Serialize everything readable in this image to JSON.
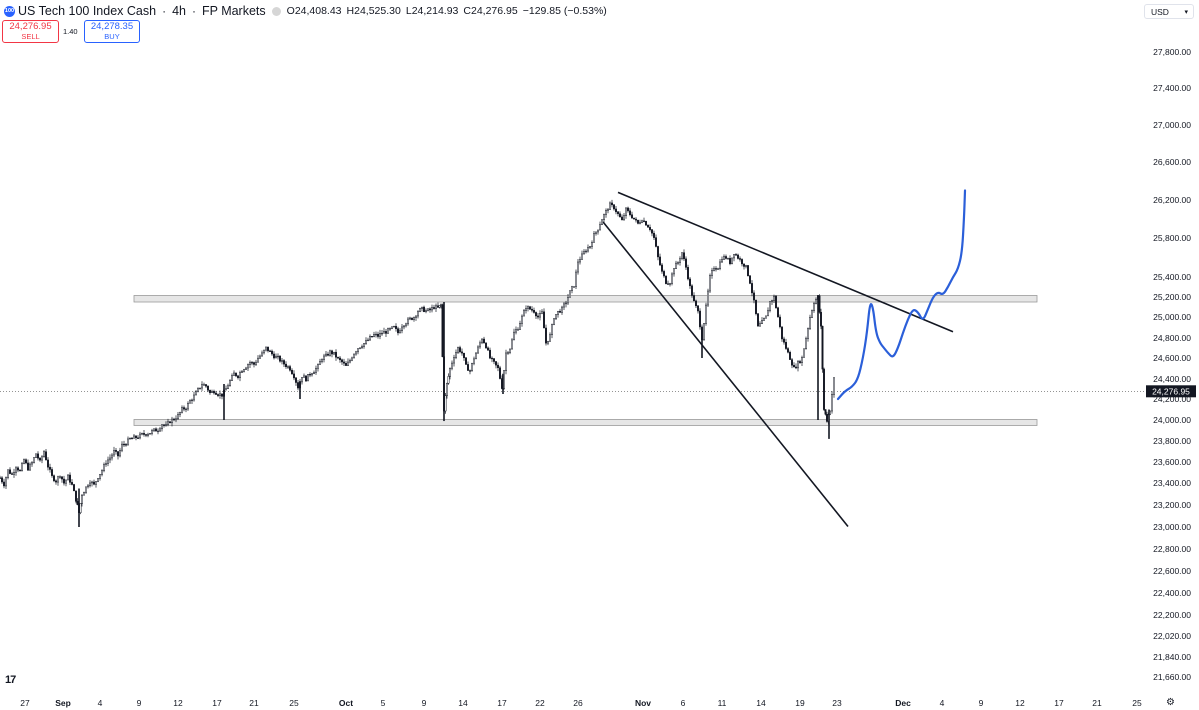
{
  "header": {
    "logo_text": "100",
    "title": "US Tech 100 Index Cash",
    "interval": "4h",
    "broker": "FP Markets",
    "open_label": "O",
    "open": "24,408.43",
    "high_label": "H",
    "high": "24,525.30",
    "low_label": "L",
    "low": "24,214.93",
    "close_label": "C",
    "close": "24,276.95",
    "change": "−129.85 (−0.53%)"
  },
  "trade": {
    "sell_price": "24,276.95",
    "sell_label": "SELL",
    "spread": "1.40",
    "buy_price": "24,278.35",
    "buy_label": "BUY"
  },
  "currency": "USD",
  "logo": "17",
  "colors": {
    "accent": "#2962ff",
    "sell": "#f23645",
    "candles": "#131722",
    "projection": "#2b5fd9",
    "price_tag": "#131722"
  },
  "icons": {
    "settings": "gear-icon",
    "brand": "tradingview-logo-icon"
  },
  "chart_data": {
    "type": "candlestick",
    "title": "US Tech 100 Index Cash · 4h · FP Markets",
    "y_unit": "USD",
    "y_ticks": [
      27800,
      27400,
      27000,
      26600,
      26200,
      25800,
      25400,
      25200,
      25000,
      24800,
      24600,
      24400,
      24200,
      24000,
      23800,
      23600,
      23400,
      23200,
      23000,
      22800,
      22600,
      22400,
      22200,
      22020,
      21840,
      21660
    ],
    "y_tick_labels": [
      "27,800.00",
      "27,400.00",
      "27,000.00",
      "26,600.00",
      "26,200.00",
      "25,800.00",
      "25,400.00",
      "25,200.00",
      "25,000.00",
      "24,800.00",
      "24,600.00",
      "24,400.00",
      "24,200.00",
      "24,000.00",
      "23,800.00",
      "23,600.00",
      "23,400.00",
      "23,200.00",
      "23,000.00",
      "22,800.00",
      "22,600.00",
      "22,400.00",
      "22,200.00",
      "22,020.00",
      "21,840.00",
      "21,660.00"
    ],
    "x_labels": [
      "27",
      "Sep",
      "4",
      "9",
      "12",
      "17",
      "21",
      "25",
      "Oct",
      "5",
      "9",
      "14",
      "17",
      "22",
      "26",
      "Nov",
      "6",
      "11",
      "14",
      "19",
      "23",
      "Dec",
      "4",
      "9",
      "12",
      "17",
      "21",
      "25"
    ],
    "x_label_bold": [
      "Sep",
      "Oct",
      "Nov",
      "Dec"
    ],
    "last_price": 24276.95,
    "last_price_label": "24,276.95",
    "price_path": [
      [
        0,
        23450
      ],
      [
        4,
        23390
      ],
      [
        8,
        23520
      ],
      [
        12,
        23480
      ],
      [
        16,
        23560
      ],
      [
        20,
        23510
      ],
      [
        24,
        23620
      ],
      [
        28,
        23540
      ],
      [
        32,
        23590
      ],
      [
        36,
        23680
      ],
      [
        40,
        23600
      ],
      [
        44,
        23700
      ],
      [
        48,
        23560
      ],
      [
        52,
        23460
      ],
      [
        56,
        23420
      ],
      [
        60,
        23480
      ],
      [
        64,
        23400
      ],
      [
        68,
        23460
      ],
      [
        72,
        23380
      ],
      [
        76,
        23250
      ],
      [
        79,
        23130
      ],
      [
        82,
        23300
      ],
      [
        86,
        23360
      ],
      [
        90,
        23420
      ],
      [
        94,
        23380
      ],
      [
        98,
        23460
      ],
      [
        102,
        23520
      ],
      [
        106,
        23600
      ],
      [
        110,
        23640
      ],
      [
        114,
        23700
      ],
      [
        118,
        23660
      ],
      [
        122,
        23760
      ],
      [
        126,
        23780
      ],
      [
        130,
        23820
      ],
      [
        134,
        23830
      ],
      [
        138,
        23840
      ],
      [
        142,
        23860
      ],
      [
        146,
        23870
      ],
      [
        150,
        23880
      ],
      [
        154,
        23900
      ],
      [
        158,
        23910
      ],
      [
        162,
        23960
      ],
      [
        166,
        23940
      ],
      [
        170,
        23990
      ],
      [
        174,
        24010
      ],
      [
        178,
        24040
      ],
      [
        182,
        24100
      ],
      [
        186,
        24120
      ],
      [
        190,
        24180
      ],
      [
        194,
        24230
      ],
      [
        198,
        24290
      ],
      [
        202,
        24350
      ],
      [
        206,
        24330
      ],
      [
        210,
        24260
      ],
      [
        214,
        24280
      ],
      [
        218,
        24250
      ],
      [
        222,
        24240
      ],
      [
        226,
        24300
      ],
      [
        230,
        24380
      ],
      [
        234,
        24450
      ],
      [
        238,
        24430
      ],
      [
        242,
        24490
      ],
      [
        246,
        24520
      ],
      [
        250,
        24560
      ],
      [
        254,
        24540
      ],
      [
        258,
        24600
      ],
      [
        262,
        24640
      ],
      [
        266,
        24700
      ],
      [
        270,
        24660
      ],
      [
        274,
        24620
      ],
      [
        278,
        24600
      ],
      [
        282,
        24560
      ],
      [
        286,
        24530
      ],
      [
        290,
        24500
      ],
      [
        294,
        24430
      ],
      [
        298,
        24320
      ],
      [
        302,
        24430
      ],
      [
        306,
        24400
      ],
      [
        310,
        24450
      ],
      [
        314,
        24480
      ],
      [
        318,
        24520
      ],
      [
        322,
        24600
      ],
      [
        326,
        24620
      ],
      [
        330,
        24660
      ],
      [
        334,
        24640
      ],
      [
        338,
        24590
      ],
      [
        342,
        24560
      ],
      [
        346,
        24520
      ],
      [
        350,
        24580
      ],
      [
        354,
        24650
      ],
      [
        358,
        24700
      ],
      [
        362,
        24730
      ],
      [
        366,
        24760
      ],
      [
        370,
        24800
      ],
      [
        374,
        24830
      ],
      [
        378,
        24820
      ],
      [
        382,
        24850
      ],
      [
        386,
        24860
      ],
      [
        390,
        24880
      ],
      [
        394,
        24900
      ],
      [
        398,
        24850
      ],
      [
        402,
        24920
      ],
      [
        406,
        24950
      ],
      [
        410,
        24980
      ],
      [
        414,
        25000
      ],
      [
        418,
        25060
      ],
      [
        422,
        25080
      ],
      [
        426,
        25060
      ],
      [
        430,
        25070
      ],
      [
        434,
        25100
      ],
      [
        438,
        25090
      ],
      [
        441,
        25120
      ],
      [
        444,
        24100
      ],
      [
        447,
        24350
      ],
      [
        450,
        24500
      ],
      [
        454,
        24620
      ],
      [
        458,
        24700
      ],
      [
        462,
        24650
      ],
      [
        466,
        24520
      ],
      [
        470,
        24480
      ],
      [
        474,
        24600
      ],
      [
        478,
        24700
      ],
      [
        482,
        24800
      ],
      [
        486,
        24720
      ],
      [
        490,
        24600
      ],
      [
        494,
        24550
      ],
      [
        498,
        24500
      ],
      [
        502,
        24320
      ],
      [
        506,
        24650
      ],
      [
        510,
        24700
      ],
      [
        514,
        24850
      ],
      [
        518,
        24900
      ],
      [
        522,
        25000
      ],
      [
        526,
        25100
      ],
      [
        530,
        25080
      ],
      [
        534,
        25060
      ],
      [
        538,
        25000
      ],
      [
        542,
        25040
      ],
      [
        546,
        24750
      ],
      [
        550,
        24820
      ],
      [
        554,
        25000
      ],
      [
        558,
        25050
      ],
      [
        562,
        25080
      ],
      [
        566,
        25150
      ],
      [
        570,
        25250
      ],
      [
        574,
        25320
      ],
      [
        578,
        25560
      ],
      [
        582,
        25620
      ],
      [
        586,
        25680
      ],
      [
        590,
        25720
      ],
      [
        594,
        25830
      ],
      [
        598,
        25900
      ],
      [
        602,
        26000
      ],
      [
        606,
        26080
      ],
      [
        610,
        26150
      ],
      [
        614,
        26120
      ],
      [
        618,
        26050
      ],
      [
        622,
        25980
      ],
      [
        626,
        26100
      ],
      [
        630,
        26050
      ],
      [
        634,
        26000
      ],
      [
        638,
        25950
      ],
      [
        642,
        26000
      ],
      [
        646,
        25950
      ],
      [
        650,
        25900
      ],
      [
        654,
        25800
      ],
      [
        658,
        25600
      ],
      [
        662,
        25450
      ],
      [
        666,
        25350
      ],
      [
        670,
        25350
      ],
      [
        674,
        25500
      ],
      [
        678,
        25550
      ],
      [
        682,
        25650
      ],
      [
        686,
        25500
      ],
      [
        690,
        25300
      ],
      [
        694,
        25150
      ],
      [
        698,
        25050
      ],
      [
        702,
        24800
      ],
      [
        706,
        25100
      ],
      [
        710,
        25400
      ],
      [
        714,
        25500
      ],
      [
        718,
        25500
      ],
      [
        722,
        25600
      ],
      [
        726,
        25600
      ],
      [
        730,
        25550
      ],
      [
        734,
        25650
      ],
      [
        738,
        25600
      ],
      [
        742,
        25550
      ],
      [
        746,
        25500
      ],
      [
        750,
        25350
      ],
      [
        754,
        25150
      ],
      [
        758,
        24900
      ],
      [
        762,
        24950
      ],
      [
        766,
        25000
      ],
      [
        770,
        25150
      ],
      [
        774,
        25200
      ],
      [
        778,
        25000
      ],
      [
        782,
        24800
      ],
      [
        786,
        24700
      ],
      [
        790,
        24600
      ],
      [
        794,
        24500
      ],
      [
        798,
        24550
      ],
      [
        802,
        24600
      ],
      [
        806,
        24800
      ],
      [
        810,
        25000
      ],
      [
        814,
        25150
      ],
      [
        818,
        25200
      ],
      [
        821,
        24900
      ],
      [
        824,
        24100
      ],
      [
        827,
        24000
      ],
      [
        830,
        24100
      ],
      [
        834,
        24400
      ]
    ],
    "annotations": {
      "zones": [
        {
          "price_top": 25215,
          "price_bottom": 25150,
          "label": "resistance zone"
        },
        {
          "price_top": 24005,
          "price_bottom": 23950,
          "label": "support zone"
        }
      ],
      "trendlines": [
        {
          "name": "upper trendline",
          "from": [
            618,
            26280
          ],
          "to": [
            953,
            24860
          ]
        },
        {
          "name": "lower trendline",
          "from": [
            603,
            25970
          ],
          "to": [
            848,
            23005
          ]
        }
      ],
      "projection_path": [
        [
          838,
          24200
        ],
        [
          845,
          24280
        ],
        [
          852,
          24320
        ],
        [
          858,
          24400
        ],
        [
          863,
          24600
        ],
        [
          867,
          24850
        ],
        [
          870,
          25150
        ],
        [
          873,
          25100
        ],
        [
          876,
          24850
        ],
        [
          880,
          24750
        ],
        [
          884,
          24700
        ],
        [
          888,
          24650
        ],
        [
          893,
          24600
        ],
        [
          898,
          24700
        ],
        [
          903,
          24850
        ],
        [
          908,
          24980
        ],
        [
          913,
          25080
        ],
        [
          918,
          25050
        ],
        [
          923,
          24960
        ],
        [
          928,
          25080
        ],
        [
          933,
          25200
        ],
        [
          938,
          25250
        ],
        [
          943,
          25220
        ],
        [
          948,
          25300
        ],
        [
          953,
          25400
        ],
        [
          958,
          25480
        ],
        [
          962,
          25650
        ],
        [
          964,
          26000
        ],
        [
          965,
          26300
        ]
      ]
    }
  }
}
